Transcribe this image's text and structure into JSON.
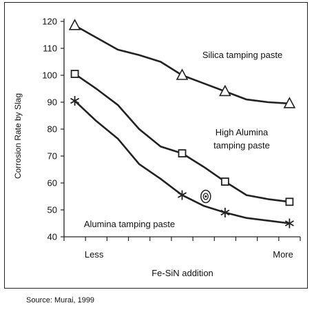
{
  "chart_data": {
    "type": "line",
    "xlabel": "Fe-SiN addition",
    "ylabel": "Corrosion Rate by Slag",
    "ylim": [
      40,
      120
    ],
    "yticks": [
      40,
      50,
      60,
      70,
      80,
      90,
      100,
      110,
      120
    ],
    "xlim": [
      0,
      11
    ],
    "x_text_labels": [
      {
        "text": "Less",
        "x": 1.4
      },
      {
        "text": "More",
        "x": 10.2
      }
    ],
    "grid": false,
    "series": [
      {
        "name": "Silica tamping paste",
        "marker": "triangle",
        "x": [
          0.5,
          1.5,
          2.5,
          3.5,
          4.5,
          5.5,
          6.5,
          7.5,
          8.5,
          9.5,
          10.5
        ],
        "y": [
          118.5,
          114,
          109.5,
          107.5,
          105,
          100,
          97,
          94,
          91,
          90,
          89.5
        ],
        "marker_x": [
          0.5,
          5.5,
          7.5,
          10.5
        ],
        "marker_y": [
          118.5,
          100,
          94,
          89.5
        ]
      },
      {
        "name": "High Alumina tamping paste",
        "marker": "square",
        "x": [
          0.5,
          1.5,
          2.5,
          3.5,
          4.5,
          5.5,
          6.5,
          7.5,
          8.5,
          9.5,
          10.5
        ],
        "y": [
          100.5,
          95,
          89,
          80,
          73.5,
          71,
          66,
          60.5,
          55.5,
          54,
          53
        ],
        "marker_x": [
          0.5,
          5.5,
          7.5,
          10.5
        ],
        "marker_y": [
          100.5,
          71,
          60.5,
          53
        ]
      },
      {
        "name": "Alumina tamping paste",
        "marker": "asterisk",
        "x": [
          0.5,
          1.5,
          2.5,
          3.5,
          4.5,
          5.5,
          6.5,
          7.5,
          8.5,
          9.5,
          10.5
        ],
        "y": [
          90.5,
          83,
          76.5,
          67,
          61.5,
          55.5,
          51.5,
          49,
          47,
          46,
          45
        ],
        "marker_x": [
          0.5,
          5.5,
          7.5,
          10.5
        ],
        "marker_y": [
          90.5,
          55.5,
          49,
          45
        ]
      }
    ],
    "annotations": [
      {
        "text": "Silica tamping paste"
      },
      {
        "text": "High Alumina"
      },
      {
        "text": "tamping paste"
      },
      {
        "text": "Alumina tamping paste"
      }
    ],
    "extra_marker": {
      "type": "circled-dot",
      "x": 6.6,
      "y": 55
    },
    "source": "Source: Murai, 1999"
  }
}
